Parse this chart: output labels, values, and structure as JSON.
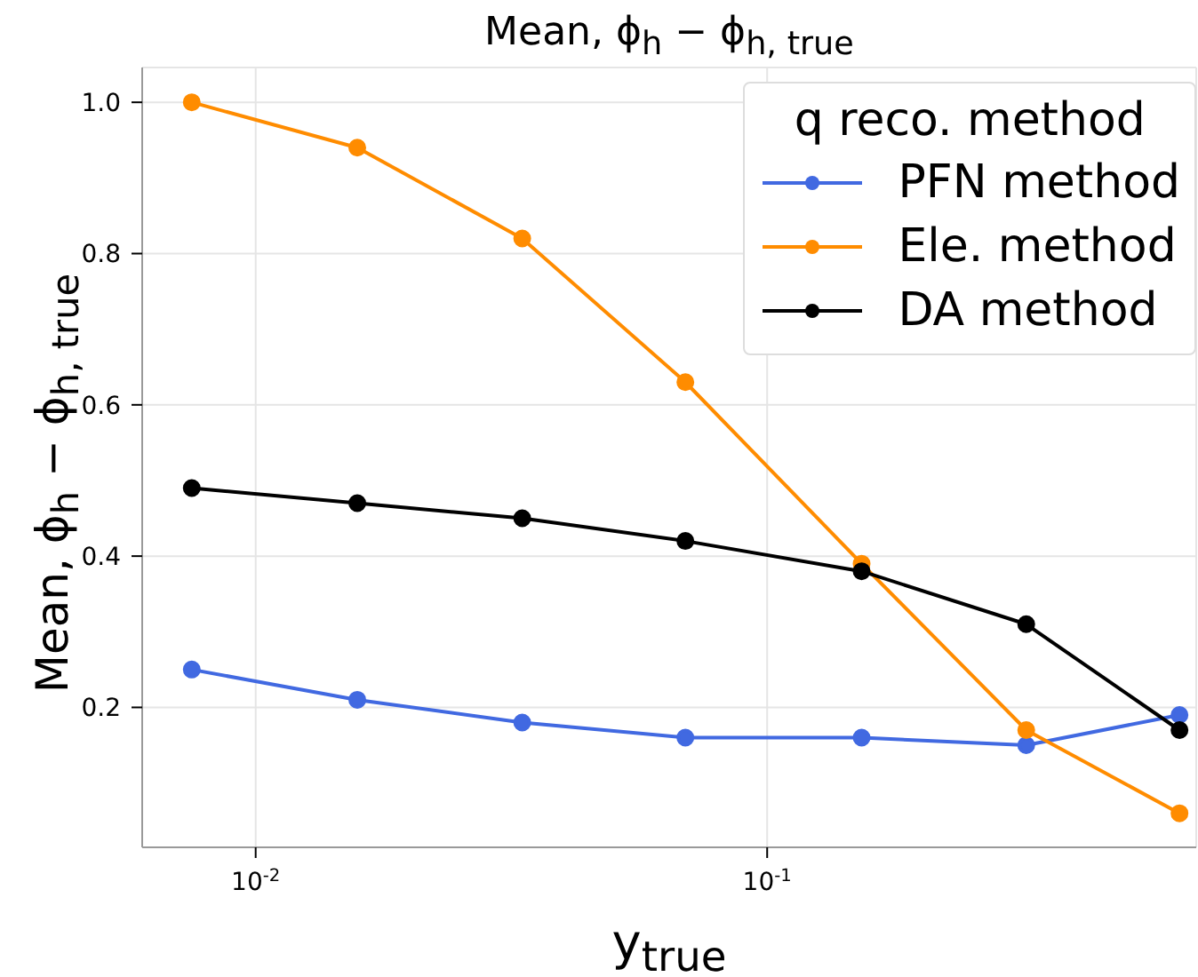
{
  "chart_data": {
    "type": "line",
    "title": "Mean, ϕ$_{h}$ − ϕ$_{h, true}$",
    "xlabel": "y$_{true}$",
    "ylabel": "Mean, ϕ$_{h}$ − ϕ$_{h, true}$",
    "legend_title": "q reco. method",
    "x": [
      0.0075,
      0.0158,
      0.0332,
      0.0692,
      0.153,
      0.321,
      0.64
    ],
    "series": [
      {
        "name": "PFN method",
        "color": "#4169e1",
        "values": [
          0.25,
          0.21,
          0.18,
          0.16,
          0.16,
          0.15,
          0.19
        ]
      },
      {
        "name": "Ele. method",
        "color": "#ff8c00",
        "values": [
          1.0,
          0.94,
          0.82,
          0.63,
          0.39,
          0.17,
          0.06
        ]
      },
      {
        "name": "DA method",
        "color": "#000000",
        "values": [
          0.49,
          0.47,
          0.45,
          0.42,
          0.38,
          0.31,
          0.17
        ]
      }
    ],
    "log": "x",
    "xlim": [
      0.006,
      0.69
    ],
    "xticks": [
      {
        "value": 0.01,
        "label": "10$^{-2}$"
      },
      {
        "value": 0.1,
        "label": "10$^{-1}$"
      }
    ],
    "ylim": [
      0.015,
      1.046
    ],
    "yticks": [
      {
        "value": 0.2,
        "label": "0.2"
      },
      {
        "value": 0.4,
        "label": "0.4"
      },
      {
        "value": 0.6,
        "label": "0.6"
      },
      {
        "value": 0.8,
        "label": "0.8"
      },
      {
        "value": 1.0,
        "label": "1.0"
      }
    ],
    "grid": true,
    "legend": "top right",
    "marker": "circle",
    "line_style": "solid"
  }
}
